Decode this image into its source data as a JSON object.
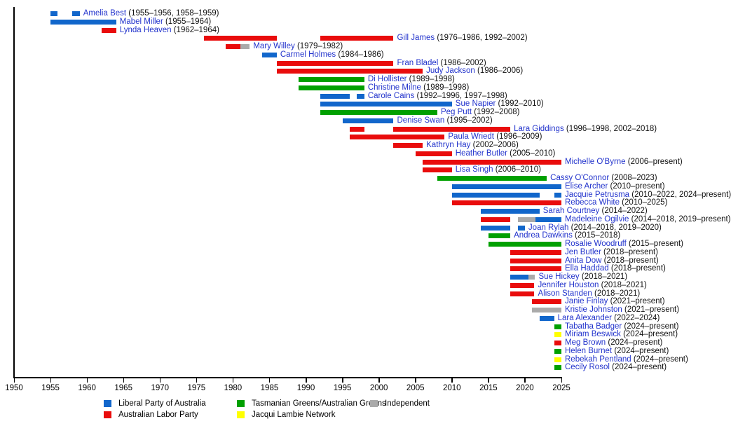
{
  "chart_data": {
    "type": "timeline",
    "title": "",
    "x_axis": {
      "range": [
        1950,
        2025
      ],
      "tick_step": 5,
      "ticks": [
        1950,
        1955,
        1960,
        1965,
        1970,
        1975,
        1980,
        1985,
        1990,
        1995,
        2000,
        2005,
        2010,
        2015,
        2020,
        2025
      ]
    },
    "label_colors": {
      "name_link": "#2233CC",
      "dates": "#111111"
    },
    "parties": {
      "liberal": {
        "label": "Liberal Party of Australia",
        "color": "#1166CB"
      },
      "labor": {
        "label": "Australian Labor Party",
        "color": "#E90C0C"
      },
      "greens": {
        "label": "Tasmanian Greens/Australian Greens",
        "color": "#00A000"
      },
      "jln": {
        "label": "Jacqui Lambie Network",
        "color": "#FFFF00"
      },
      "independent": {
        "label": "Independent",
        "color": "#AAAAAA"
      }
    },
    "legend": {
      "position": "bottom",
      "columns": [
        [
          "liberal",
          "labor"
        ],
        [
          "greens",
          "jln"
        ],
        [
          "independent"
        ]
      ]
    },
    "people": [
      {
        "name": "Amelia Best",
        "dates": "(1955–1956, 1958–1959)",
        "segments": [
          {
            "party": "liberal",
            "start": 1955,
            "end": 1956
          },
          {
            "party": "liberal",
            "start": 1958,
            "end": 1959
          }
        ]
      },
      {
        "name": "Mabel Miller",
        "dates": "(1955–1964)",
        "segments": [
          {
            "party": "liberal",
            "start": 1955,
            "end": 1964
          }
        ]
      },
      {
        "name": "Lynda Heaven",
        "dates": "(1962–1964)",
        "segments": [
          {
            "party": "labor",
            "start": 1962,
            "end": 1964
          }
        ]
      },
      {
        "name": "Gill James",
        "dates": "(1976–1986, 1992–2002)",
        "segments": [
          {
            "party": "labor",
            "start": 1976,
            "end": 1986
          },
          {
            "party": "labor",
            "start": 1992,
            "end": 2002
          }
        ]
      },
      {
        "name": "Mary Willey",
        "dates": "(1979–1982)",
        "segments": [
          {
            "party": "labor",
            "start": 1979,
            "end": 1981
          },
          {
            "party": "independent",
            "start": 1981,
            "end": 1982.3
          }
        ]
      },
      {
        "name": "Carmel Holmes",
        "dates": "(1984–1986)",
        "segments": [
          {
            "party": "liberal",
            "start": 1984,
            "end": 1986
          }
        ]
      },
      {
        "name": "Fran Bladel",
        "dates": "(1986–2002)",
        "segments": [
          {
            "party": "labor",
            "start": 1986,
            "end": 2002
          }
        ]
      },
      {
        "name": "Judy Jackson",
        "dates": "(1986–2006)",
        "segments": [
          {
            "party": "labor",
            "start": 1986,
            "end": 2006
          }
        ]
      },
      {
        "name": "Di Hollister",
        "dates": "(1989–1998)",
        "segments": [
          {
            "party": "greens",
            "start": 1989,
            "end": 1998
          }
        ]
      },
      {
        "name": "Christine Milne",
        "dates": "(1989–1998)",
        "segments": [
          {
            "party": "greens",
            "start": 1989,
            "end": 1998
          }
        ]
      },
      {
        "name": "Carole Cains",
        "dates": "(1992–1996, 1997–1998)",
        "segments": [
          {
            "party": "liberal",
            "start": 1992,
            "end": 1996
          },
          {
            "party": "liberal",
            "start": 1997,
            "end": 1998
          }
        ]
      },
      {
        "name": "Sue Napier",
        "dates": "(1992–2010)",
        "segments": [
          {
            "party": "liberal",
            "start": 1992,
            "end": 2010
          }
        ]
      },
      {
        "name": "Peg Putt",
        "dates": "(1992–2008)",
        "segments": [
          {
            "party": "greens",
            "start": 1992,
            "end": 2008
          }
        ]
      },
      {
        "name": "Denise Swan",
        "dates": "(1995–2002)",
        "segments": [
          {
            "party": "liberal",
            "start": 1995,
            "end": 2002
          }
        ]
      },
      {
        "name": "Lara Giddings",
        "dates": "(1996–1998, 2002–2018)",
        "segments": [
          {
            "party": "labor",
            "start": 1996,
            "end": 1998
          },
          {
            "party": "labor",
            "start": 2002,
            "end": 2018
          }
        ]
      },
      {
        "name": "Paula Wriedt",
        "dates": "(1996–2009)",
        "segments": [
          {
            "party": "labor",
            "start": 1996,
            "end": 2009
          }
        ]
      },
      {
        "name": "Kathryn Hay",
        "dates": "(2002–2006)",
        "segments": [
          {
            "party": "labor",
            "start": 2002,
            "end": 2006
          }
        ]
      },
      {
        "name": "Heather Butler",
        "dates": "(2005–2010)",
        "segments": [
          {
            "party": "labor",
            "start": 2005,
            "end": 2010
          }
        ]
      },
      {
        "name": "Michelle O'Byrne",
        "dates": "(2006–present)",
        "segments": [
          {
            "party": "labor",
            "start": 2006,
            "end": 2025
          }
        ]
      },
      {
        "name": "Lisa Singh",
        "dates": "(2006–2010)",
        "segments": [
          {
            "party": "labor",
            "start": 2006,
            "end": 2010
          }
        ]
      },
      {
        "name": "Cassy O'Connor",
        "dates": "(2008–2023)",
        "segments": [
          {
            "party": "greens",
            "start": 2008,
            "end": 2023
          }
        ]
      },
      {
        "name": "Elise Archer",
        "dates": "(2010–present)",
        "segments": [
          {
            "party": "liberal",
            "start": 2010,
            "end": 2025
          }
        ]
      },
      {
        "name": "Jacquie Petrusma",
        "dates": "(2010–2022, 2024–present)",
        "segments": [
          {
            "party": "liberal",
            "start": 2010,
            "end": 2022
          },
          {
            "party": "liberal",
            "start": 2024,
            "end": 2025
          }
        ]
      },
      {
        "name": "Rebecca White",
        "dates": "(2010–2025)",
        "segments": [
          {
            "party": "labor",
            "start": 2010,
            "end": 2025
          }
        ]
      },
      {
        "name": "Sarah Courtney",
        "dates": "(2014–2022)",
        "segments": [
          {
            "party": "liberal",
            "start": 2014,
            "end": 2022
          }
        ]
      },
      {
        "name": "Madeleine Ogilvie",
        "dates": "(2014–2018, 2019–present)",
        "segments": [
          {
            "party": "labor",
            "start": 2014,
            "end": 2018
          },
          {
            "party": "independent",
            "start": 2019,
            "end": 2021.4
          },
          {
            "party": "liberal",
            "start": 2021.4,
            "end": 2025
          }
        ]
      },
      {
        "name": "Joan Rylah",
        "dates": "(2014–2018, 2019–2020)",
        "segments": [
          {
            "party": "liberal",
            "start": 2014,
            "end": 2018
          },
          {
            "party": "liberal",
            "start": 2019,
            "end": 2020
          }
        ]
      },
      {
        "name": "Andrea Dawkins",
        "dates": "(2015–2018)",
        "segments": [
          {
            "party": "greens",
            "start": 2015,
            "end": 2018
          }
        ]
      },
      {
        "name": "Rosalie Woodruff",
        "dates": "(2015–present)",
        "segments": [
          {
            "party": "greens",
            "start": 2015,
            "end": 2025
          }
        ]
      },
      {
        "name": "Jen Butler",
        "dates": "(2018–present)",
        "segments": [
          {
            "party": "labor",
            "start": 2018,
            "end": 2025
          }
        ]
      },
      {
        "name": "Anita Dow",
        "dates": "(2018–present)",
        "segments": [
          {
            "party": "labor",
            "start": 2018,
            "end": 2025
          }
        ]
      },
      {
        "name": "Ella Haddad",
        "dates": "(2018–present)",
        "segments": [
          {
            "party": "labor",
            "start": 2018,
            "end": 2025
          }
        ]
      },
      {
        "name": "Sue Hickey",
        "dates": "(2018–2021)",
        "segments": [
          {
            "party": "liberal",
            "start": 2018,
            "end": 2020.5
          },
          {
            "party": "independent",
            "start": 2020.5,
            "end": 2021.4
          }
        ]
      },
      {
        "name": "Jennifer Houston",
        "dates": "(2018–2021)",
        "segments": [
          {
            "party": "labor",
            "start": 2018,
            "end": 2021.3
          }
        ]
      },
      {
        "name": "Alison Standen",
        "dates": "(2018–2021)",
        "segments": [
          {
            "party": "labor",
            "start": 2018,
            "end": 2021.3
          }
        ]
      },
      {
        "name": "Janie Finlay",
        "dates": "(2021–present)",
        "segments": [
          {
            "party": "labor",
            "start": 2021,
            "end": 2025
          }
        ]
      },
      {
        "name": "Kristie Johnston",
        "dates": "(2021–present)",
        "segments": [
          {
            "party": "independent",
            "start": 2021,
            "end": 2025
          }
        ]
      },
      {
        "name": "Lara Alexander",
        "dates": "(2022–2024)",
        "segments": [
          {
            "party": "liberal",
            "start": 2022,
            "end": 2024
          }
        ]
      },
      {
        "name": "Tabatha Badger",
        "dates": "(2024–present)",
        "segments": [
          {
            "party": "greens",
            "start": 2024,
            "end": 2025
          }
        ]
      },
      {
        "name": "Miriam Beswick",
        "dates": "(2024–present)",
        "segments": [
          {
            "party": "jln",
            "start": 2024,
            "end": 2025
          }
        ]
      },
      {
        "name": "Meg Brown",
        "dates": "(2024–present)",
        "segments": [
          {
            "party": "labor",
            "start": 2024,
            "end": 2025
          }
        ]
      },
      {
        "name": "Helen Burnet",
        "dates": "(2024–present)",
        "segments": [
          {
            "party": "greens",
            "start": 2024,
            "end": 2025
          }
        ]
      },
      {
        "name": "Rebekah Pentland",
        "dates": "(2024–present)",
        "segments": [
          {
            "party": "jln",
            "start": 2024,
            "end": 2025
          }
        ]
      },
      {
        "name": "Cecily Rosol",
        "dates": "(2024–present)",
        "segments": [
          {
            "party": "greens",
            "start": 2024,
            "end": 2025
          }
        ]
      }
    ]
  }
}
